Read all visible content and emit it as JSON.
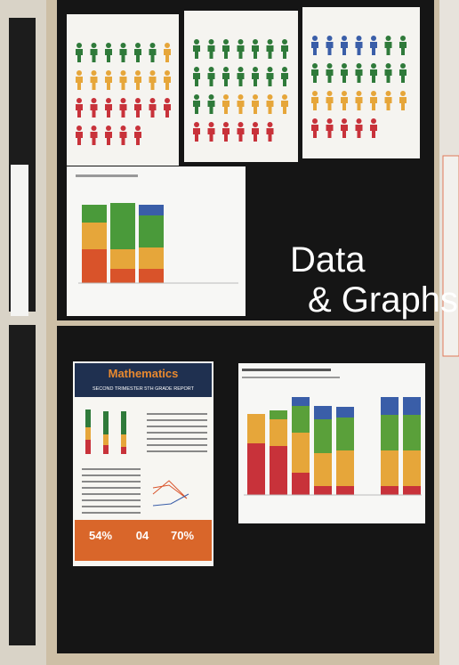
{
  "headline": {
    "line1": "Data",
    "line2": "& Graphs"
  },
  "poster": {
    "title": "Mathematics",
    "subtitle": "SECOND TRIMESTER 5TH GRADE REPORT",
    "stats": [
      "54%",
      "04",
      "70%"
    ]
  }
}
